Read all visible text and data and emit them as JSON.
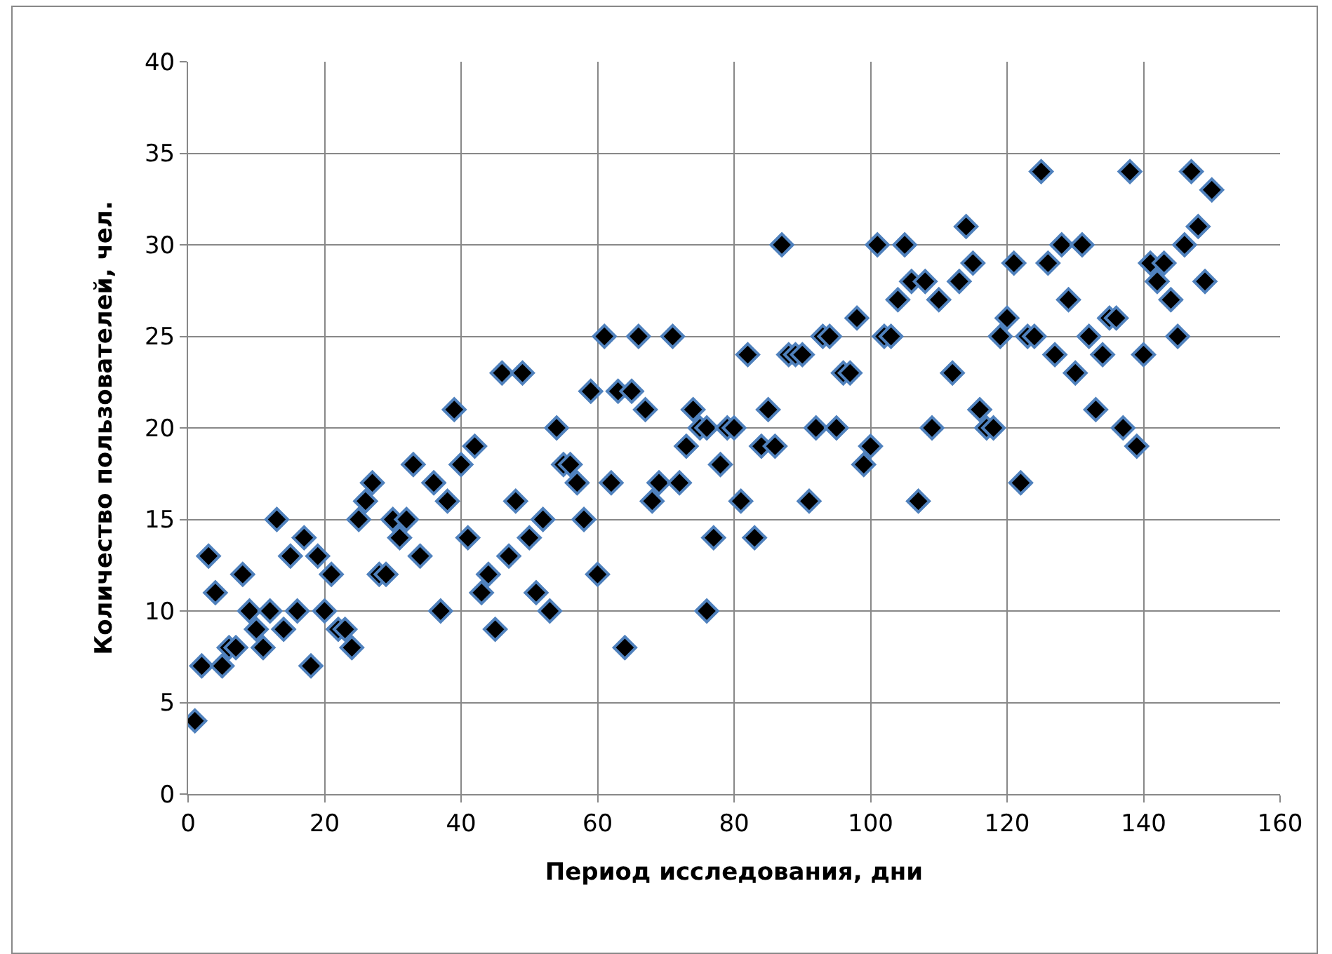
{
  "chart_data": {
    "type": "scatter",
    "xlabel": "Период исследования, дни",
    "ylabel": "Количество пользователей, чел.",
    "x": [
      1,
      2,
      3,
      4,
      5,
      6,
      7,
      8,
      9,
      10,
      11,
      12,
      13,
      14,
      15,
      16,
      17,
      18,
      19,
      20,
      21,
      22,
      23,
      24,
      25,
      26,
      27,
      28,
      29,
      30,
      31,
      32,
      33,
      34,
      36,
      37,
      38,
      39,
      40,
      41,
      42,
      43,
      44,
      45,
      46,
      47,
      48,
      49,
      50,
      51,
      52,
      53,
      54,
      55,
      56,
      57,
      58,
      59,
      60,
      61,
      62,
      63,
      64,
      65,
      66,
      67,
      68,
      69,
      71,
      72,
      73,
      74,
      75,
      76,
      76,
      77,
      78,
      79,
      80,
      81,
      82,
      83,
      84,
      85,
      86,
      87,
      88,
      89,
      90,
      91,
      92,
      93,
      94,
      95,
      96,
      97,
      98,
      99,
      100,
      101,
      102,
      103,
      104,
      105,
      106,
      107,
      108,
      109,
      110,
      112,
      113,
      114,
      115,
      116,
      117,
      118,
      119,
      120,
      121,
      122,
      123,
      124,
      125,
      126,
      127,
      128,
      129,
      130,
      131,
      132,
      133,
      134,
      135,
      136,
      137,
      138,
      139,
      140,
      141,
      142,
      143,
      144,
      145,
      146,
      147,
      148,
      149,
      150
    ],
    "values": [
      4,
      7,
      13,
      11,
      7,
      8,
      8,
      12,
      10,
      9,
      8,
      10,
      15,
      9,
      13,
      10,
      14,
      7,
      13,
      10,
      12,
      9,
      9,
      8,
      15,
      16,
      17,
      12,
      12,
      15,
      14,
      15,
      18,
      13,
      17,
      10,
      16,
      21,
      18,
      14,
      19,
      11,
      12,
      9,
      23,
      13,
      16,
      23,
      14,
      11,
      15,
      10,
      20,
      18,
      18,
      17,
      15,
      22,
      12,
      25,
      17,
      22,
      8,
      22,
      25,
      21,
      16,
      17,
      25,
      17,
      19,
      21,
      20,
      10,
      20,
      14,
      18,
      20,
      20,
      16,
      24,
      14,
      19,
      21,
      19,
      30,
      24,
      24,
      24,
      16,
      20,
      25,
      25,
      20,
      23,
      23,
      26,
      18,
      19,
      30,
      25,
      25,
      27,
      30,
      28,
      16,
      28,
      20,
      27,
      23,
      28,
      31,
      29,
      21,
      20,
      20,
      25,
      26,
      29,
      17,
      25,
      25,
      34,
      29,
      24,
      30,
      27,
      23,
      30,
      25,
      21,
      24,
      26,
      26,
      20,
      34,
      19,
      24,
      29,
      28,
      29,
      27,
      25,
      30,
      34,
      31,
      28,
      33
    ],
    "color": "#000000",
    "marker": "diamond",
    "xlim": [
      0,
      160
    ],
    "xticks": [
      0,
      20,
      40,
      60,
      80,
      100,
      120,
      140,
      160
    ],
    "ylim": [
      0,
      40
    ],
    "yticks": [
      0,
      5,
      10,
      15,
      20,
      25,
      30,
      35,
      40
    ],
    "grid": true
  }
}
